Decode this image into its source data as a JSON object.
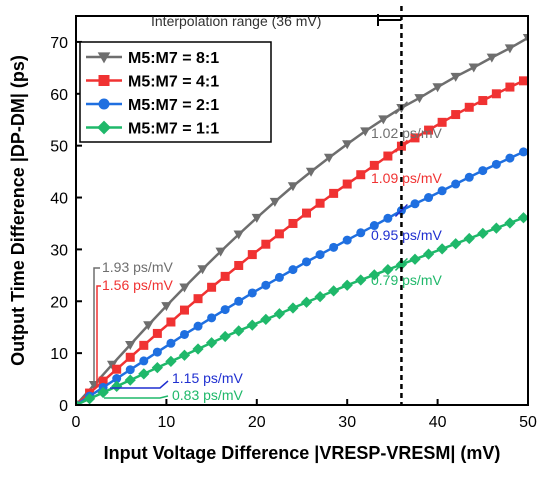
{
  "chart_data": {
    "type": "line",
    "xlabel": "Input Voltage Difference |VRESP-VRESM| (mV)",
    "ylabel": "Output Time Difference |DP-DM| (ps)",
    "xlim": [
      0,
      50
    ],
    "ylim": [
      0,
      75
    ],
    "xticks": [
      0,
      10,
      20,
      30,
      40,
      50
    ],
    "yticks": [
      0,
      10,
      20,
      30,
      40,
      50,
      60,
      70
    ],
    "legend_position": "top-left",
    "interpolation_range": {
      "label": "Interpolation range (36 mV)",
      "x": 36
    },
    "series": [
      {
        "name": "M5:M7 = 8:1",
        "color": "#6e6e6e",
        "marker": "triangle-down",
        "x": [
          0,
          2,
          4,
          6,
          8,
          10,
          12,
          14,
          16,
          18,
          20,
          22,
          24,
          26,
          28,
          30,
          32,
          34,
          36,
          38,
          40,
          42,
          44,
          46,
          48,
          50
        ],
        "y": [
          0,
          3.9,
          7.8,
          11.6,
          15.4,
          19.1,
          22.7,
          26.2,
          29.6,
          32.9,
          36.1,
          39.2,
          42.2,
          45.0,
          47.7,
          50.3,
          52.8,
          55.1,
          57.3,
          59.2,
          61.3,
          63.3,
          65.1,
          67.0,
          68.8,
          70.8
        ]
      },
      {
        "name": "M5:M7 = 4:1",
        "color": "#f03232",
        "marker": "square",
        "x": [
          0,
          1.5,
          3,
          4.5,
          6,
          7.5,
          9,
          10.5,
          12,
          13.5,
          15,
          16.5,
          18,
          19.5,
          21,
          22.5,
          24,
          25.5,
          27,
          28.5,
          30,
          31.5,
          33,
          34.5,
          36,
          37.5,
          39,
          40.5,
          42,
          43.5,
          45,
          46.5,
          48,
          49.5
        ],
        "y": [
          0,
          2.3,
          4.6,
          6.9,
          9.2,
          11.5,
          13.8,
          16.0,
          18.3,
          20.5,
          22.7,
          24.8,
          26.9,
          29.0,
          31.0,
          33.0,
          35.0,
          37.0,
          38.9,
          40.8,
          42.6,
          44.4,
          46.2,
          48.0,
          49.9,
          51.5,
          53.0,
          54.5,
          56.0,
          57.4,
          58.7,
          60.0,
          61.3,
          62.5
        ]
      },
      {
        "name": "M5:M7 = 2:1",
        "color": "#1f6fe0",
        "marker": "circle",
        "x": [
          0,
          1.5,
          3,
          4.5,
          6,
          7.5,
          9,
          10.5,
          12,
          13.5,
          15,
          16.5,
          18,
          19.5,
          21,
          22.5,
          24,
          25.5,
          27,
          28.5,
          30,
          31.5,
          33,
          34.5,
          36,
          37.5,
          39,
          40.5,
          42,
          43.5,
          45,
          46.5,
          48,
          49.5
        ],
        "y": [
          0,
          1.7,
          3.4,
          5.1,
          6.8,
          8.5,
          10.2,
          11.9,
          13.6,
          15.2,
          16.8,
          18.4,
          20.0,
          21.6,
          23.1,
          24.6,
          26.1,
          27.6,
          29.0,
          30.4,
          31.8,
          33.2,
          34.6,
          36.0,
          37.5,
          38.8,
          40.0,
          41.3,
          42.6,
          43.9,
          45.2,
          46.4,
          47.6,
          48.8
        ]
      },
      {
        "name": "M5:M7 = 1:1",
        "color": "#1fb86a",
        "marker": "diamond",
        "x": [
          0,
          1.5,
          3,
          4.5,
          6,
          7.5,
          9,
          10.5,
          12,
          13.5,
          15,
          16.5,
          18,
          19.5,
          21,
          22.5,
          24,
          25.5,
          27,
          28.5,
          30,
          31.5,
          33,
          34.5,
          36,
          37.5,
          39,
          40.5,
          42,
          43.5,
          45,
          46.5,
          48,
          49.5
        ],
        "y": [
          0,
          1.2,
          2.4,
          3.6,
          4.8,
          6.0,
          7.2,
          8.4,
          9.6,
          10.8,
          12.0,
          13.2,
          14.3,
          15.4,
          16.5,
          17.6,
          18.7,
          19.8,
          20.9,
          22.0,
          23.1,
          24.1,
          25.1,
          26.1,
          27.1,
          28.1,
          29.1,
          30.1,
          31.1,
          32.1,
          33.1,
          34.1,
          35.1,
          36.1
        ]
      }
    ],
    "annotations": [
      {
        "text": "1.93 ps/mV",
        "color": "#6e6e6e"
      },
      {
        "text": "1.56 ps/mV",
        "color": "#f03232"
      },
      {
        "text": "1.15 ps/mV",
        "color": "#1f2fd0"
      },
      {
        "text": "0.83 ps/mV",
        "color": "#1fb86a"
      },
      {
        "text": "1.02 ps/mV",
        "color": "#6e6e6e"
      },
      {
        "text": "1.09 ps/mV",
        "color": "#f03232"
      },
      {
        "text": "0.95 ps/mV",
        "color": "#1f2fd0"
      },
      {
        "text": "0.79 ps/mV",
        "color": "#1fb86a"
      }
    ]
  }
}
